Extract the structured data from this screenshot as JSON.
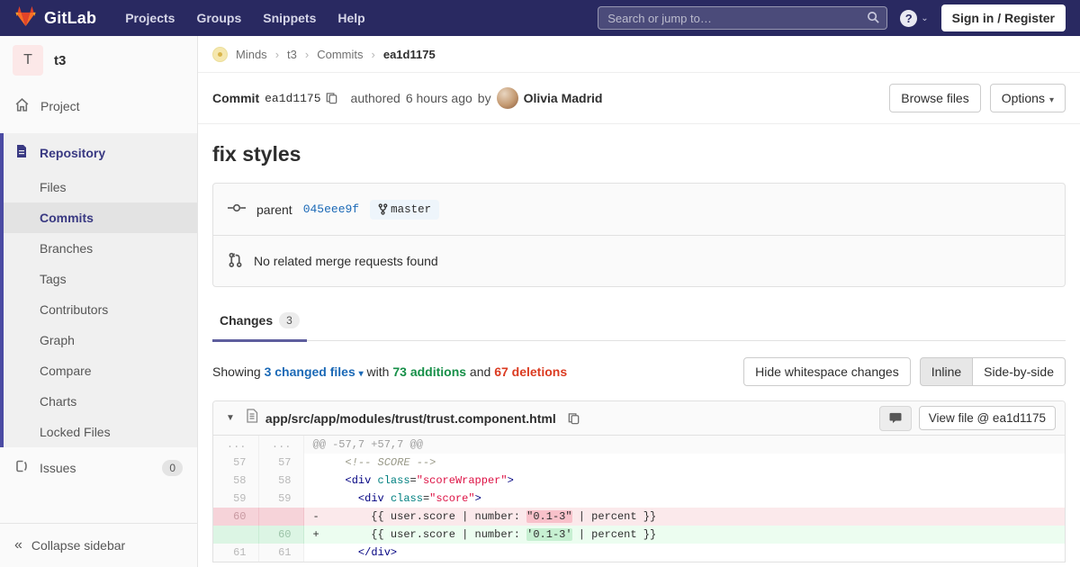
{
  "colors": {
    "navbar": "#292961",
    "sidebar_accent": "#4b4ba3",
    "active_text": "#393982",
    "link_blue": "#1b69b6",
    "additions_green": "#168f48",
    "deletions_red": "#db3b21",
    "tab_underline": "#5e5e9e",
    "deletion_bg": "#fbe9eb",
    "addition_bg": "#ecfdf0",
    "deletion_word_bg": "#f8c1ca",
    "addition_word_bg": "#c7f0d2",
    "branch_badge_bg": "#eef5fb"
  },
  "icons": {
    "logo": "gitlab-tanuki-icon",
    "search": "search-icon",
    "help": "question-icon",
    "caret_down": "▾",
    "chevron_down": "⌄",
    "collapse": "«",
    "crumb_sep": "›",
    "file_collapse": "▼"
  },
  "nav": {
    "brand": "GitLab",
    "menu": [
      "Projects",
      "Groups",
      "Snippets",
      "Help"
    ],
    "search_placeholder": "Search or jump to…",
    "sign_in": "Sign in / Register"
  },
  "sidebar": {
    "project_initial": "T",
    "project_name": "t3",
    "project_item": "Project",
    "repository_item": "Repository",
    "repo_items": [
      "Files",
      "Commits",
      "Branches",
      "Tags",
      "Contributors",
      "Graph",
      "Compare",
      "Charts",
      "Locked Files"
    ],
    "active_item": "Commits",
    "issues_label": "Issues",
    "issues_count": "0",
    "collapse_label": "Collapse sidebar"
  },
  "breadcrumb": {
    "items": [
      "Minds",
      "t3",
      "Commits"
    ],
    "current": "ea1d1175"
  },
  "commit_header": {
    "label": "Commit",
    "sha": "ea1d1175",
    "authored": "authored",
    "time": "6 hours ago",
    "by": "by",
    "author": "Olivia Madrid",
    "browse_files": "Browse files",
    "options": "Options"
  },
  "commit": {
    "title": "fix styles",
    "parent_label": "parent",
    "parent_sha": "045eee9f",
    "branch": "master",
    "no_mr": "No related merge requests found"
  },
  "tabs": {
    "changes_label": "Changes",
    "changes_count": "3"
  },
  "summary": {
    "showing": "Showing ",
    "files_link": "3 changed files",
    "with": " with ",
    "additions": "73 additions",
    "and": " and ",
    "deletions": "67 deletions",
    "hide_whitespace": "Hide whitespace changes",
    "inline": "Inline",
    "side_by_side": "Side-by-side"
  },
  "diff": {
    "file_path": "app/src/app/modules/trust/trust.component.html",
    "view_file": "View file @ ea1d1175",
    "rows": [
      {
        "t": "hunk",
        "old": "...",
        "new": "...",
        "segs": [
          [
            "hunk",
            "@@ -57,7 +57,7 @@"
          ]
        ]
      },
      {
        "t": "ctx",
        "old": "57",
        "new": "57",
        "segs": [
          [
            "pl",
            "     "
          ],
          [
            "cm",
            "<!-- SCORE -->"
          ]
        ]
      },
      {
        "t": "ctx",
        "old": "58",
        "new": "58",
        "segs": [
          [
            "pl",
            "     "
          ],
          [
            "tag",
            "<div"
          ],
          [
            "pl",
            " "
          ],
          [
            "attr",
            "class"
          ],
          [
            "pl",
            "="
          ],
          [
            "str",
            "\"scoreWrapper\""
          ],
          [
            "tag",
            ">"
          ]
        ]
      },
      {
        "t": "ctx",
        "old": "59",
        "new": "59",
        "segs": [
          [
            "pl",
            "       "
          ],
          [
            "tag",
            "<div"
          ],
          [
            "pl",
            " "
          ],
          [
            "attr",
            "class"
          ],
          [
            "pl",
            "="
          ],
          [
            "str",
            "\"score\""
          ],
          [
            "tag",
            ">"
          ]
        ]
      },
      {
        "t": "del",
        "old": "60",
        "new": "",
        "segs": [
          [
            "pl",
            "-        {{ user.score | number: "
          ],
          [
            "hl-del",
            "\"0.1-3\""
          ],
          [
            "pl",
            " | percent }}"
          ]
        ]
      },
      {
        "t": "add",
        "old": "",
        "new": "60",
        "segs": [
          [
            "pl",
            "+        {{ user.score | number: "
          ],
          [
            "hl-add",
            "'0.1-3'"
          ],
          [
            "pl",
            " | percent }}"
          ]
        ]
      },
      {
        "t": "ctx",
        "old": "61",
        "new": "61",
        "segs": [
          [
            "pl",
            "       "
          ],
          [
            "tag",
            "</div>"
          ]
        ]
      }
    ]
  }
}
